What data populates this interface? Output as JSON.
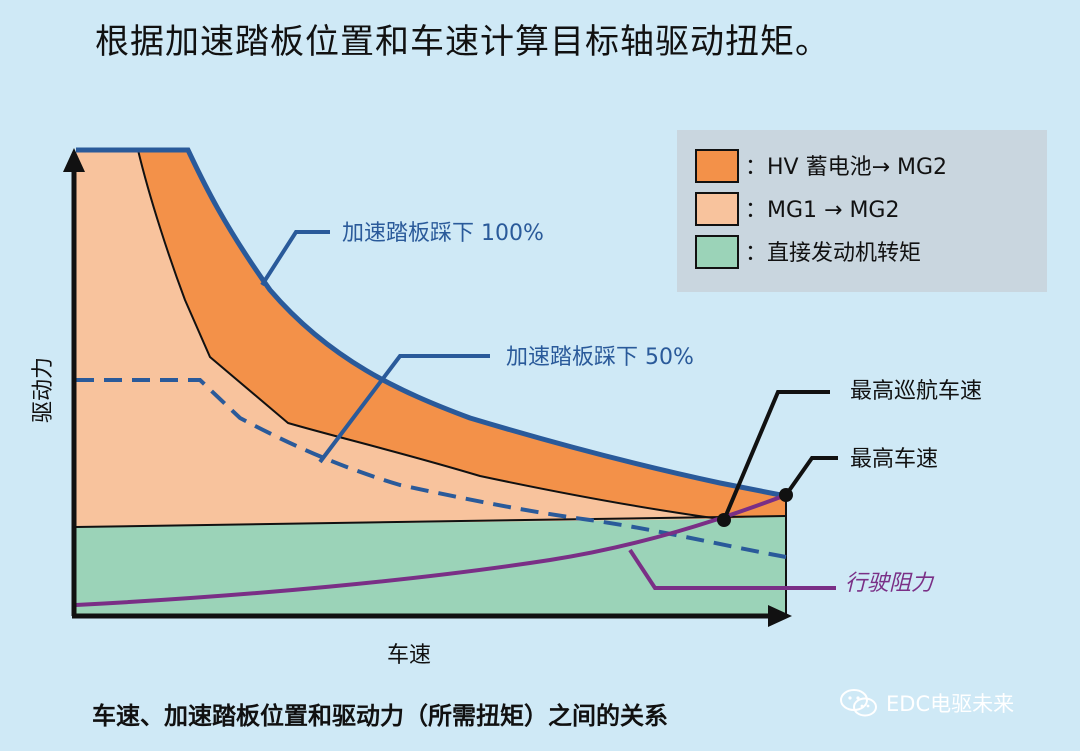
{
  "title": "根据加速踏板位置和车速计算目标轴驱动扭矩。",
  "labels": {
    "pedal_100": "加速踏板踩下 100%",
    "pedal_50": "加速踏板踩下 50%",
    "max_cruise_speed": "最高巡航车速",
    "max_speed": "最高车速",
    "driving_resistance": "行驶阻力"
  },
  "axes": {
    "y_label": "驱动力",
    "x_label": "车速"
  },
  "legend": [
    {
      "color": "#f39149",
      "text": "：HV 蓄电池→ MG2"
    },
    {
      "color": "#f8c39d",
      "text": "：MG1 → MG2"
    },
    {
      "color": "#9bd3b8",
      "text": "：直接发动机转矩"
    }
  ],
  "colors": {
    "background": "#cfe9f6",
    "hv_battery_area": "#f39149",
    "mg1_mg2_area": "#f8c39d",
    "engine_area": "#9bd3b8",
    "pedal_curve": "#2a5a9a",
    "resistance_curve": "#7a2f86",
    "legend_bg": "#c9d6df"
  },
  "caption": "车速、加速踏板位置和驱动力（所需扭矩）之间的关系",
  "watermark": "EDC电驱未来"
}
